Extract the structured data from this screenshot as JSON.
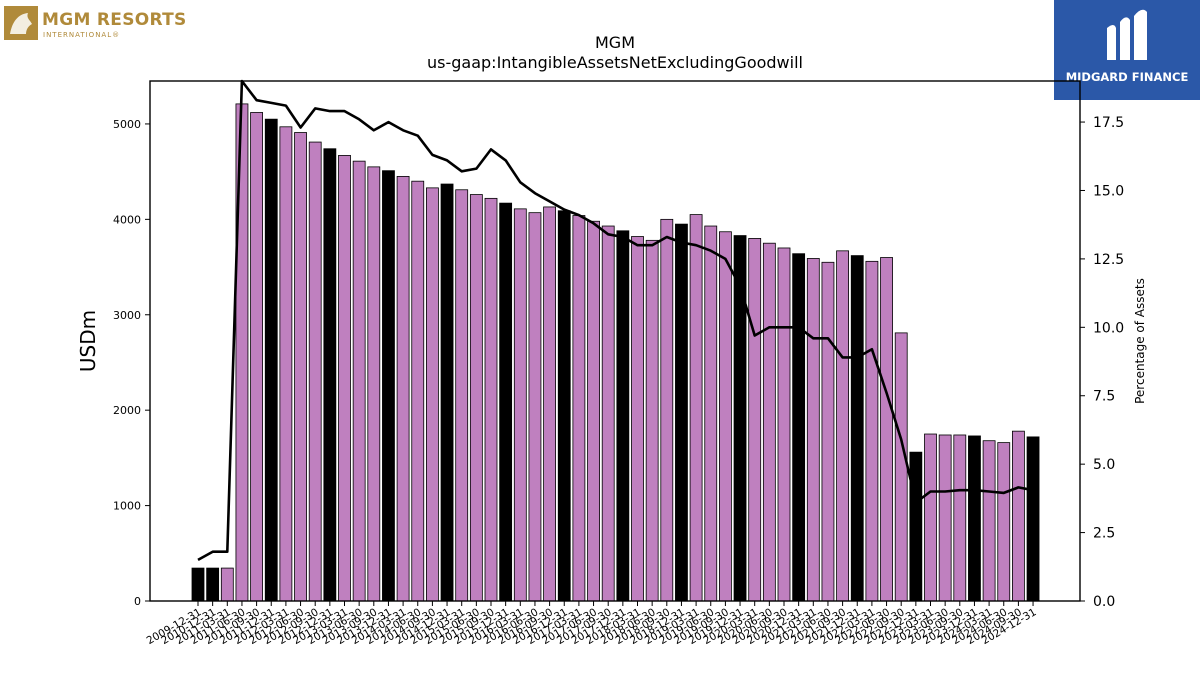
{
  "chart_data": {
    "type": "bar",
    "title": "MGM",
    "subtitle": "us-gaap:IntangibleAssetsNetExcludingGoodwill",
    "ylabel": "USDm",
    "y2label": "Percentage of Assets",
    "ylim": [
      0,
      5450
    ],
    "y2lim": [
      0,
      19.0
    ],
    "yticks": [
      0,
      1000,
      2000,
      3000,
      4000,
      5000
    ],
    "y2ticks": [
      "0.0",
      "2.5",
      "5.0",
      "7.5",
      "10.0",
      "12.5",
      "15.0",
      "17.5"
    ],
    "categories": [
      "2009-12-31",
      "2010-12-31",
      "2011-03-31",
      "2011-06-30",
      "2011-09-30",
      "2011-12-31",
      "2012-03-31",
      "2012-06-30",
      "2012-09-30",
      "2012-12-31",
      "2013-03-31",
      "2013-06-30",
      "2013-09-30",
      "2013-12-31",
      "2014-03-31",
      "2014-06-30",
      "2014-09-30",
      "2014-12-31",
      "2015-03-31",
      "2015-06-30",
      "2015-09-30",
      "2015-12-31",
      "2016-03-31",
      "2016-06-30",
      "2016-09-30",
      "2016-12-31",
      "2017-03-31",
      "2017-06-30",
      "2017-09-30",
      "2017-12-31",
      "2018-03-31",
      "2018-06-30",
      "2018-09-30",
      "2018-12-31",
      "2019-03-31",
      "2019-06-30",
      "2019-09-30",
      "2019-12-31",
      "2020-03-31",
      "2020-06-30",
      "2020-09-30",
      "2020-12-31",
      "2021-03-31",
      "2021-06-30",
      "2021-09-30",
      "2021-12-31",
      "2022-03-31",
      "2022-06-30",
      "2022-09-30",
      "2022-12-31",
      "2023-03-31",
      "2023-06-30",
      "2023-09-30",
      "2023-12-31",
      "2024-03-31",
      "2024-06-30",
      "2024-09-30",
      "2024-12-31"
    ],
    "xtick_labels": [
      "2009-12-31",
      "2010-12-31",
      "2011-03-31",
      "2011-06-30",
      "2011-09-30",
      "2011-12-31",
      "2012-03-31",
      "2012-06-30",
      "2012-09-30",
      "2012-12-31",
      "2013-03-31",
      "2013-06-30",
      "2013-09-30",
      "2013-12-31",
      "2014-03-31",
      "2014-06-30",
      "2014-09-30",
      "2014-12-31",
      "2015-03-31",
      "2015-06-30",
      "2015-09-30",
      "2015-12-31",
      "2016-03-31",
      "2016-06-30",
      "2016-09-30",
      "2016-12-31",
      "2017-03-31",
      "2017-06-30",
      "2017-09-30",
      "2017-12-31",
      "2018-03-31",
      "2018-06-30",
      "2018-09-30",
      "2018-12-31",
      "2019-03-31",
      "2019-06-30",
      "2019-09-30",
      "2019-12-31",
      "2020-03-31",
      "2020-06-30",
      "2020-09-30",
      "2020-12-31",
      "2021-03-31",
      "2021-06-30",
      "2021-09-30",
      "2021-12-31",
      "2022-03-31",
      "2022-06-30",
      "2022-09-30",
      "2022-12-31",
      "2023-03-31",
      "2023-06-30",
      "2023-09-30",
      "2023-12-31",
      "2024-03-31",
      "2024-06-30",
      "2024-09-30",
      "2024-12-31"
    ],
    "values": [
      345,
      345,
      345,
      5210,
      5120,
      5050,
      4970,
      4910,
      4810,
      4740,
      4670,
      4610,
      4550,
      4510,
      4450,
      4400,
      4330,
      4370,
      4310,
      4260,
      4220,
      4170,
      4110,
      4070,
      4130,
      4090,
      4040,
      3980,
      3930,
      3880,
      3820,
      3780,
      4000,
      3950,
      4050,
      3930,
      3870,
      3830,
      3800,
      3750,
      3700,
      3640,
      3590,
      3550,
      3670,
      3620,
      3560,
      3600,
      2810,
      1560,
      1750,
      1740,
      1740,
      1730,
      1680,
      1660,
      1780,
      1720
    ],
    "bar_colors": [
      "#000000",
      "#000000",
      "#bf80bf",
      "#bf80bf",
      "#bf80bf",
      "#000000",
      "#bf80bf",
      "#bf80bf",
      "#bf80bf",
      "#000000",
      "#bf80bf",
      "#bf80bf",
      "#bf80bf",
      "#000000",
      "#bf80bf",
      "#bf80bf",
      "#bf80bf",
      "#000000",
      "#bf80bf",
      "#bf80bf",
      "#bf80bf",
      "#000000",
      "#bf80bf",
      "#bf80bf",
      "#bf80bf",
      "#000000",
      "#bf80bf",
      "#bf80bf",
      "#bf80bf",
      "#000000",
      "#bf80bf",
      "#bf80bf",
      "#bf80bf",
      "#000000",
      "#bf80bf",
      "#bf80bf",
      "#bf80bf",
      "#000000",
      "#bf80bf",
      "#bf80bf",
      "#bf80bf",
      "#000000",
      "#bf80bf",
      "#bf80bf",
      "#bf80bf",
      "#000000",
      "#bf80bf",
      "#bf80bf",
      "#bf80bf",
      "#000000",
      "#bf80bf",
      "#bf80bf",
      "#bf80bf",
      "#000000",
      "#bf80bf",
      "#bf80bf",
      "#bf80bf",
      "#000000"
    ],
    "series": [
      {
        "axis": "right",
        "color": "#000000",
        "values": [
          1.5,
          1.8,
          1.8,
          19.0,
          18.3,
          18.2,
          18.1,
          17.3,
          18.0,
          17.9,
          17.9,
          17.6,
          17.2,
          17.5,
          17.2,
          17.0,
          16.3,
          16.1,
          15.7,
          15.8,
          16.5,
          16.1,
          15.3,
          14.9,
          14.6,
          14.3,
          14.1,
          13.8,
          13.4,
          13.3,
          13.0,
          13.0,
          13.3,
          13.1,
          13.0,
          12.8,
          12.5,
          11.5,
          9.7,
          10.0,
          10.0,
          10.0,
          9.6,
          9.6,
          8.9,
          8.9,
          9.2,
          7.6,
          5.9,
          3.6,
          4.0,
          4.0,
          4.05,
          4.05,
          4.0,
          3.95,
          4.15,
          4.05
        ]
      }
    ],
    "grid": false
  },
  "brand_left": {
    "name": "MGM RESORTS",
    "sub": "INTERNATIONAL®"
  },
  "brand_right": {
    "name": "MIDGARD FINANCE"
  },
  "colors": {
    "bar_purple": "#bf80bf",
    "bar_black": "#000000",
    "brand_gold": "#b08a3a",
    "brand_blue": "#2b58a8"
  }
}
